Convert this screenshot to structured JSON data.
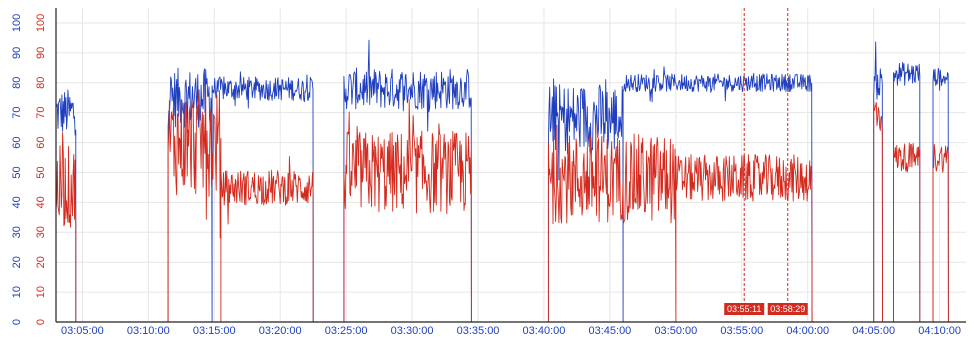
{
  "chart_data": {
    "type": "line",
    "title": "",
    "xlabel": "",
    "ylabel": "",
    "x_ticks": [
      "03:05:00",
      "03:10:00",
      "03:15:00",
      "03:20:00",
      "03:25:00",
      "03:30:00",
      "03:35:00",
      "03:40:00",
      "03:45:00",
      "03:50:00",
      "03:55:00",
      "04:00:00",
      "04:05:00",
      "04:10:00"
    ],
    "xlim": [
      "03:03:00",
      "04:12:00"
    ],
    "y_ticks_left_blue": [
      0,
      10,
      20,
      30,
      40,
      50,
      60,
      70,
      80,
      90,
      100
    ],
    "y_ticks_right_red": [
      0,
      10,
      20,
      30,
      40,
      50,
      60,
      70,
      80,
      90,
      100
    ],
    "ylim": [
      0,
      105
    ],
    "grid": true,
    "legend": "none",
    "markers": [
      {
        "time": "03:55:11",
        "label": "03:55:11"
      },
      {
        "time": "03:58:29",
        "label": "03:58:29"
      }
    ],
    "series": [
      {
        "color": "#1f3fbf",
        "segments": [
          {
            "start": "03:03:00",
            "end": "03:04:30",
            "level": 70,
            "noise": 8
          },
          {
            "start": "03:11:30",
            "end": "03:14:50",
            "level": 75,
            "noise": 10
          },
          {
            "start": "03:14:50",
            "end": "03:22:30",
            "level": 78,
            "noise": 4
          },
          {
            "start": "03:24:50",
            "end": "03:34:30",
            "level": 78,
            "noise": 7
          },
          {
            "start": "03:40:20",
            "end": "03:46:00",
            "level": 68,
            "noise": 12
          },
          {
            "start": "03:46:00",
            "end": "04:00:20",
            "level": 80,
            "noise": 3
          },
          {
            "start": "04:05:00",
            "end": "04:05:40",
            "level": 80,
            "noise": 6
          },
          {
            "start": "04:06:30",
            "end": "04:08:30",
            "level": 83,
            "noise": 4
          },
          {
            "start": "04:09:30",
            "end": "04:10:40",
            "level": 82,
            "noise": 3
          }
        ]
      },
      {
        "color": "#d42a1e",
        "segments": [
          {
            "start": "03:03:00",
            "end": "03:04:30",
            "level": 45,
            "noise": 14
          },
          {
            "start": "03:11:30",
            "end": "03:15:30",
            "level": 60,
            "noise": 18
          },
          {
            "start": "03:15:30",
            "end": "03:22:30",
            "level": 45,
            "noise": 6
          },
          {
            "start": "03:24:50",
            "end": "03:34:30",
            "level": 50,
            "noise": 14
          },
          {
            "start": "03:40:20",
            "end": "03:50:00",
            "level": 48,
            "noise": 15
          },
          {
            "start": "03:50:00",
            "end": "04:00:20",
            "level": 48,
            "noise": 8
          },
          {
            "start": "04:05:00",
            "end": "04:05:40",
            "level": 70,
            "noise": 8
          },
          {
            "start": "04:06:30",
            "end": "04:08:30",
            "level": 55,
            "noise": 5
          },
          {
            "start": "04:09:30",
            "end": "04:10:40",
            "level": 55,
            "noise": 5
          }
        ]
      }
    ]
  }
}
